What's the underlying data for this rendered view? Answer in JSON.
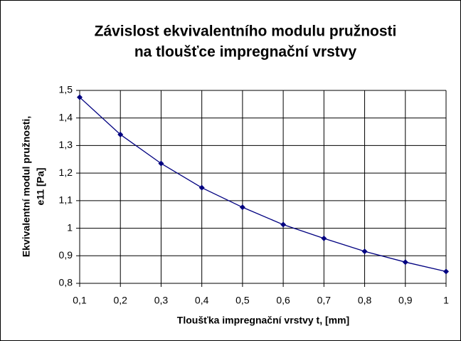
{
  "chart_data": {
    "type": "line",
    "title": [
      "Závislost ekvivalentního modulu pružnosti",
      "na tloušťce impregnační vrstvy"
    ],
    "x_label": "Tloušťka impregnační vrstvy t, [mm]",
    "y_label": [
      "Ekvivalentní modul pružnosti,",
      "e11 [Pa]"
    ],
    "x": [
      0.1,
      0.2,
      0.3,
      0.4,
      0.5,
      0.6,
      0.7,
      0.8,
      0.9,
      1
    ],
    "series": [
      {
        "color": "#000080",
        "values": [
          1.475,
          1.34,
          1.235,
          1.147,
          1.076,
          1.013,
          0.963,
          0.916,
          0.877,
          0.843
        ]
      }
    ],
    "xlim": [
      0.1,
      1
    ],
    "xticks": [
      {
        "value": 0.1,
        "label": "0,1"
      },
      {
        "value": 0.2,
        "label": "0,2"
      },
      {
        "value": 0.3,
        "label": "0,3"
      },
      {
        "value": 0.4,
        "label": "0,4"
      },
      {
        "value": 0.5,
        "label": "0,5"
      },
      {
        "value": 0.6,
        "label": "0,6"
      },
      {
        "value": 0.7,
        "label": "0,7"
      },
      {
        "value": 0.8,
        "label": "0,8"
      },
      {
        "value": 0.9,
        "label": "0,9"
      },
      1
    ],
    "ylim": [
      0.8,
      1.5
    ],
    "yticks": [
      {
        "value": 0.8,
        "label": "0,8"
      },
      {
        "value": 0.9,
        "label": "0,9"
      },
      1,
      {
        "value": 1.1,
        "label": "1,1"
      },
      {
        "value": 1.2,
        "label": "1,2"
      },
      {
        "value": 1.3,
        "label": "1,3"
      },
      {
        "value": 1.4,
        "label": "1,4"
      },
      {
        "value": 1.5,
        "label": "1,5"
      }
    ],
    "grid": true
  }
}
